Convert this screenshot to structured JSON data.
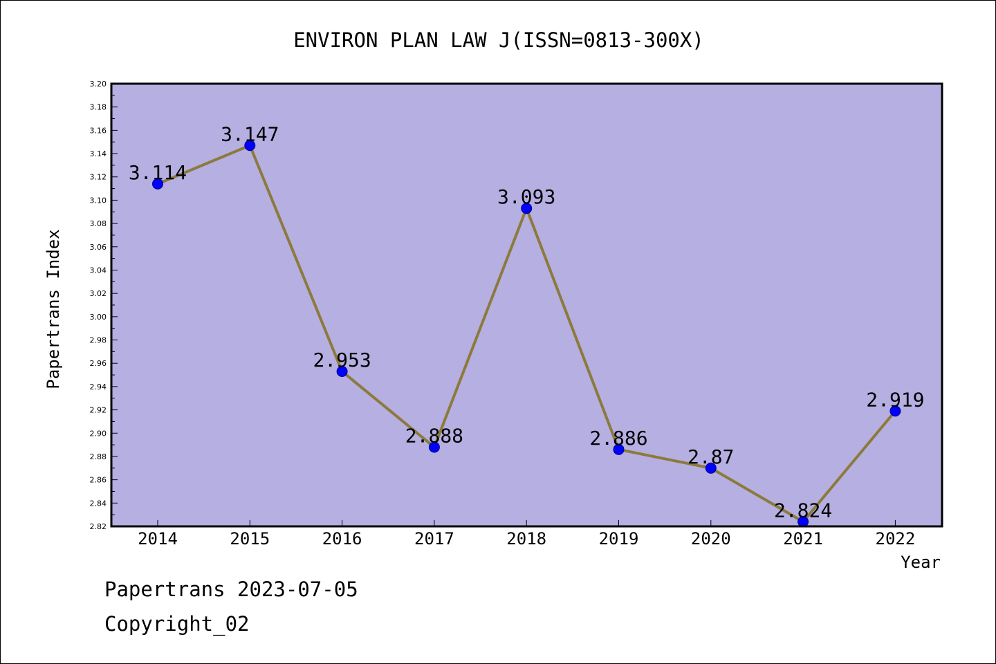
{
  "chart_data": {
    "type": "line",
    "title": "ENVIRON PLAN LAW J(ISSN=0813-300X)",
    "xlabel": "Year",
    "ylabel": "Papertrans Index",
    "categories": [
      "2014",
      "2015",
      "2016",
      "2017",
      "2018",
      "2019",
      "2020",
      "2021",
      "2022"
    ],
    "series": [
      {
        "values": [
          3.114,
          3.147,
          2.953,
          2.888,
          3.093,
          2.886,
          2.87,
          2.824,
          2.919
        ],
        "labels": [
          "3.114",
          "3.147",
          "2.953",
          "2.888",
          "3.093",
          "2.886",
          "2.87",
          "2.824",
          "2.919"
        ]
      }
    ],
    "ylim": [
      2.82,
      3.2
    ],
    "yticks": [
      "2.82",
      "2.84",
      "2.86",
      "2.88",
      "2.90",
      "2.92",
      "2.94",
      "2.96",
      "2.98",
      "3.00",
      "3.02",
      "3.04",
      "3.06",
      "3.08",
      "3.10",
      "3.12",
      "3.14",
      "3.16",
      "3.18",
      "3.20"
    ],
    "grid": false,
    "legend": "none",
    "colors": {
      "plot_background": "#b5afe2",
      "line": "#8c7a3c",
      "marker": "#0000ff"
    }
  },
  "footer": {
    "date_line": "Papertrans 2023-07-05",
    "copyright": "Copyright_02"
  }
}
